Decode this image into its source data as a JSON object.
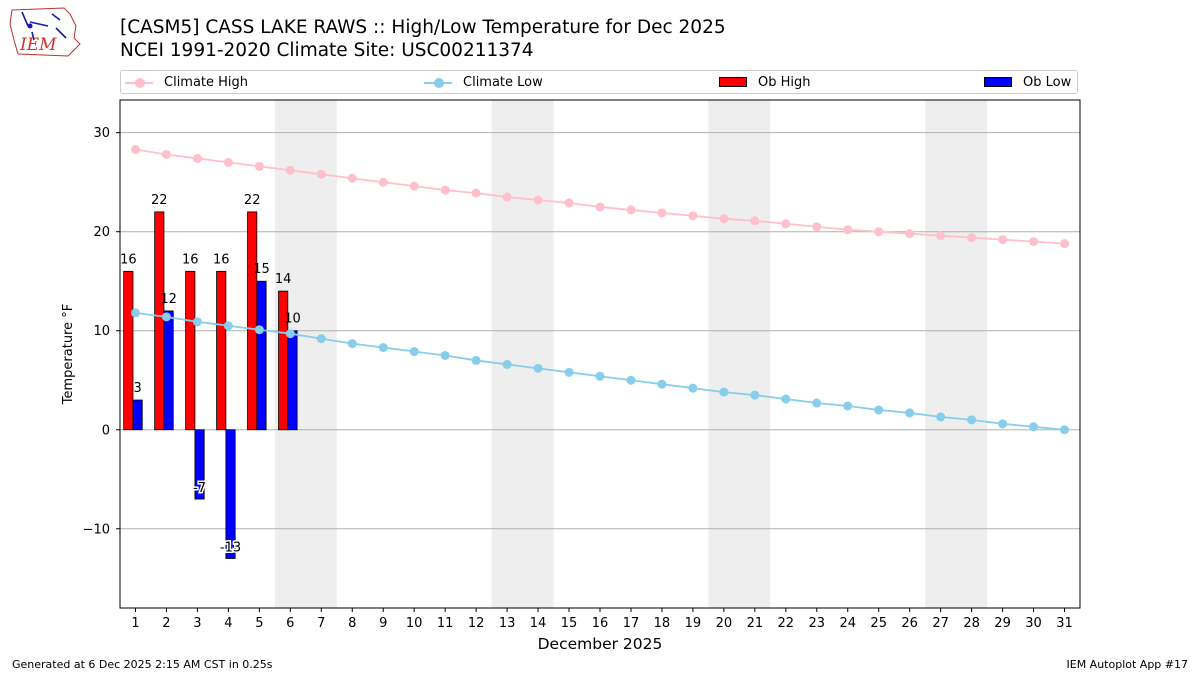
{
  "header": {
    "title": "[CASM5] CASS LAKE RAWS :: High/Low Temperature for Dec 2025",
    "subtitle": "NCEI 1991-2020 Climate Site: USC00211374",
    "logo_text": "IEM"
  },
  "legend": {
    "climate_high": "Climate High",
    "climate_low": "Climate Low",
    "ob_high": "Ob High",
    "ob_low": "Ob Low"
  },
  "footer": {
    "left": "Generated at 6 Dec 2025 2:15 AM CST in 0.25s",
    "right": "IEM Autoplot App #17"
  },
  "colors": {
    "climate_high": "#ffc0cb",
    "climate_low": "#87ceeb",
    "ob_high": "#ff0000",
    "ob_low": "#0000ff",
    "weekend_shade": "#eeeeee",
    "grid": "#b0b0b0"
  },
  "chart_data": {
    "type": "bar",
    "xlabel": "December 2025",
    "ylabel": "Temperature °F",
    "ylim": [
      -18,
      33.3
    ],
    "yticks": [
      -10,
      0,
      10,
      20,
      30
    ],
    "grid": "horizontal",
    "days": [
      1,
      2,
      3,
      4,
      5,
      6,
      7,
      8,
      9,
      10,
      11,
      12,
      13,
      14,
      15,
      16,
      17,
      18,
      19,
      20,
      21,
      22,
      23,
      24,
      25,
      26,
      27,
      28,
      29,
      30,
      31
    ],
    "weekend_shaded_days": [
      [
        6,
        7
      ],
      [
        13,
        14
      ],
      [
        20,
        21
      ],
      [
        27,
        28
      ]
    ],
    "series": [
      {
        "name": "Climate High",
        "kind": "line",
        "values": [
          28.3,
          27.8,
          27.4,
          27.0,
          26.6,
          26.2,
          25.8,
          25.4,
          25.0,
          24.6,
          24.2,
          23.9,
          23.5,
          23.2,
          22.9,
          22.5,
          22.2,
          21.9,
          21.6,
          21.3,
          21.1,
          20.8,
          20.5,
          20.2,
          20.0,
          19.8,
          19.6,
          19.4,
          19.2,
          19.0,
          18.8
        ]
      },
      {
        "name": "Climate Low",
        "kind": "line",
        "values": [
          11.8,
          11.4,
          10.9,
          10.5,
          10.1,
          9.7,
          9.2,
          8.7,
          8.3,
          7.9,
          7.5,
          7.0,
          6.6,
          6.2,
          5.8,
          5.4,
          5.0,
          4.6,
          4.2,
          3.8,
          3.5,
          3.1,
          2.7,
          2.4,
          2.0,
          1.7,
          1.3,
          1.0,
          0.6,
          0.3,
          0.0
        ]
      },
      {
        "name": "Ob High",
        "kind": "bar",
        "days": [
          1,
          2,
          3,
          4,
          5,
          6
        ],
        "values": [
          16,
          22,
          16,
          16,
          22,
          14
        ]
      },
      {
        "name": "Ob Low",
        "kind": "bar",
        "days": [
          1,
          2,
          3,
          4,
          5,
          6
        ],
        "values": [
          3,
          12,
          -7,
          -13,
          15,
          10
        ]
      }
    ]
  }
}
